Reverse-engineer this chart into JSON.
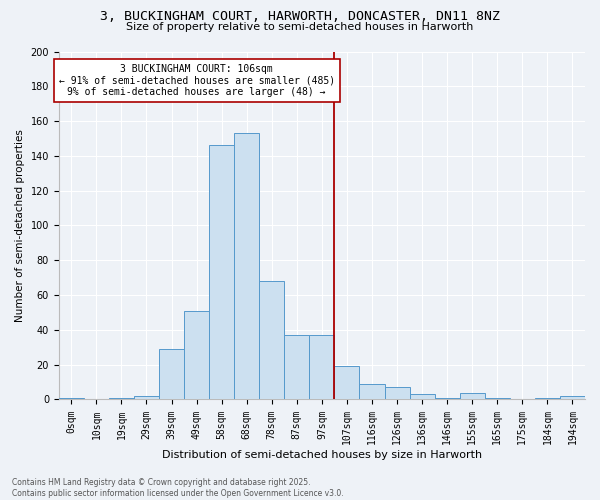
{
  "title_line1": "3, BUCKINGHAM COURT, HARWORTH, DONCASTER, DN11 8NZ",
  "title_line2": "Size of property relative to semi-detached houses in Harworth",
  "xlabel": "Distribution of semi-detached houses by size in Harworth",
  "ylabel": "Number of semi-detached properties",
  "categories": [
    "0sqm",
    "10sqm",
    "19sqm",
    "29sqm",
    "39sqm",
    "49sqm",
    "58sqm",
    "68sqm",
    "78sqm",
    "87sqm",
    "97sqm",
    "107sqm",
    "116sqm",
    "126sqm",
    "136sqm",
    "146sqm",
    "155sqm",
    "165sqm",
    "175sqm",
    "184sqm",
    "194sqm"
  ],
  "values": [
    1,
    0,
    1,
    2,
    29,
    51,
    146,
    153,
    68,
    37,
    37,
    19,
    9,
    7,
    3,
    1,
    4,
    1,
    0,
    1,
    2
  ],
  "bar_color": "#cce0f0",
  "bar_edge_color": "#5599cc",
  "annotation_title": "3 BUCKINGHAM COURT: 106sqm",
  "annotation_line1": "← 91% of semi-detached houses are smaller (485)",
  "annotation_line2": "9% of semi-detached houses are larger (48) →",
  "annotation_color": "#aa0000",
  "ylim": [
    0,
    200
  ],
  "yticks": [
    0,
    20,
    40,
    60,
    80,
    100,
    120,
    140,
    160,
    180,
    200
  ],
  "background_color": "#eef2f7",
  "grid_color": "#ffffff",
  "footer_line1": "Contains HM Land Registry data © Crown copyright and database right 2025.",
  "footer_line2": "Contains public sector information licensed under the Open Government Licence v3.0.",
  "title_fontsize": 9.5,
  "subtitle_fontsize": 8,
  "ylabel_fontsize": 7.5,
  "xlabel_fontsize": 8,
  "tick_fontsize": 7,
  "ann_fontsize": 7,
  "footer_fontsize": 5.5
}
